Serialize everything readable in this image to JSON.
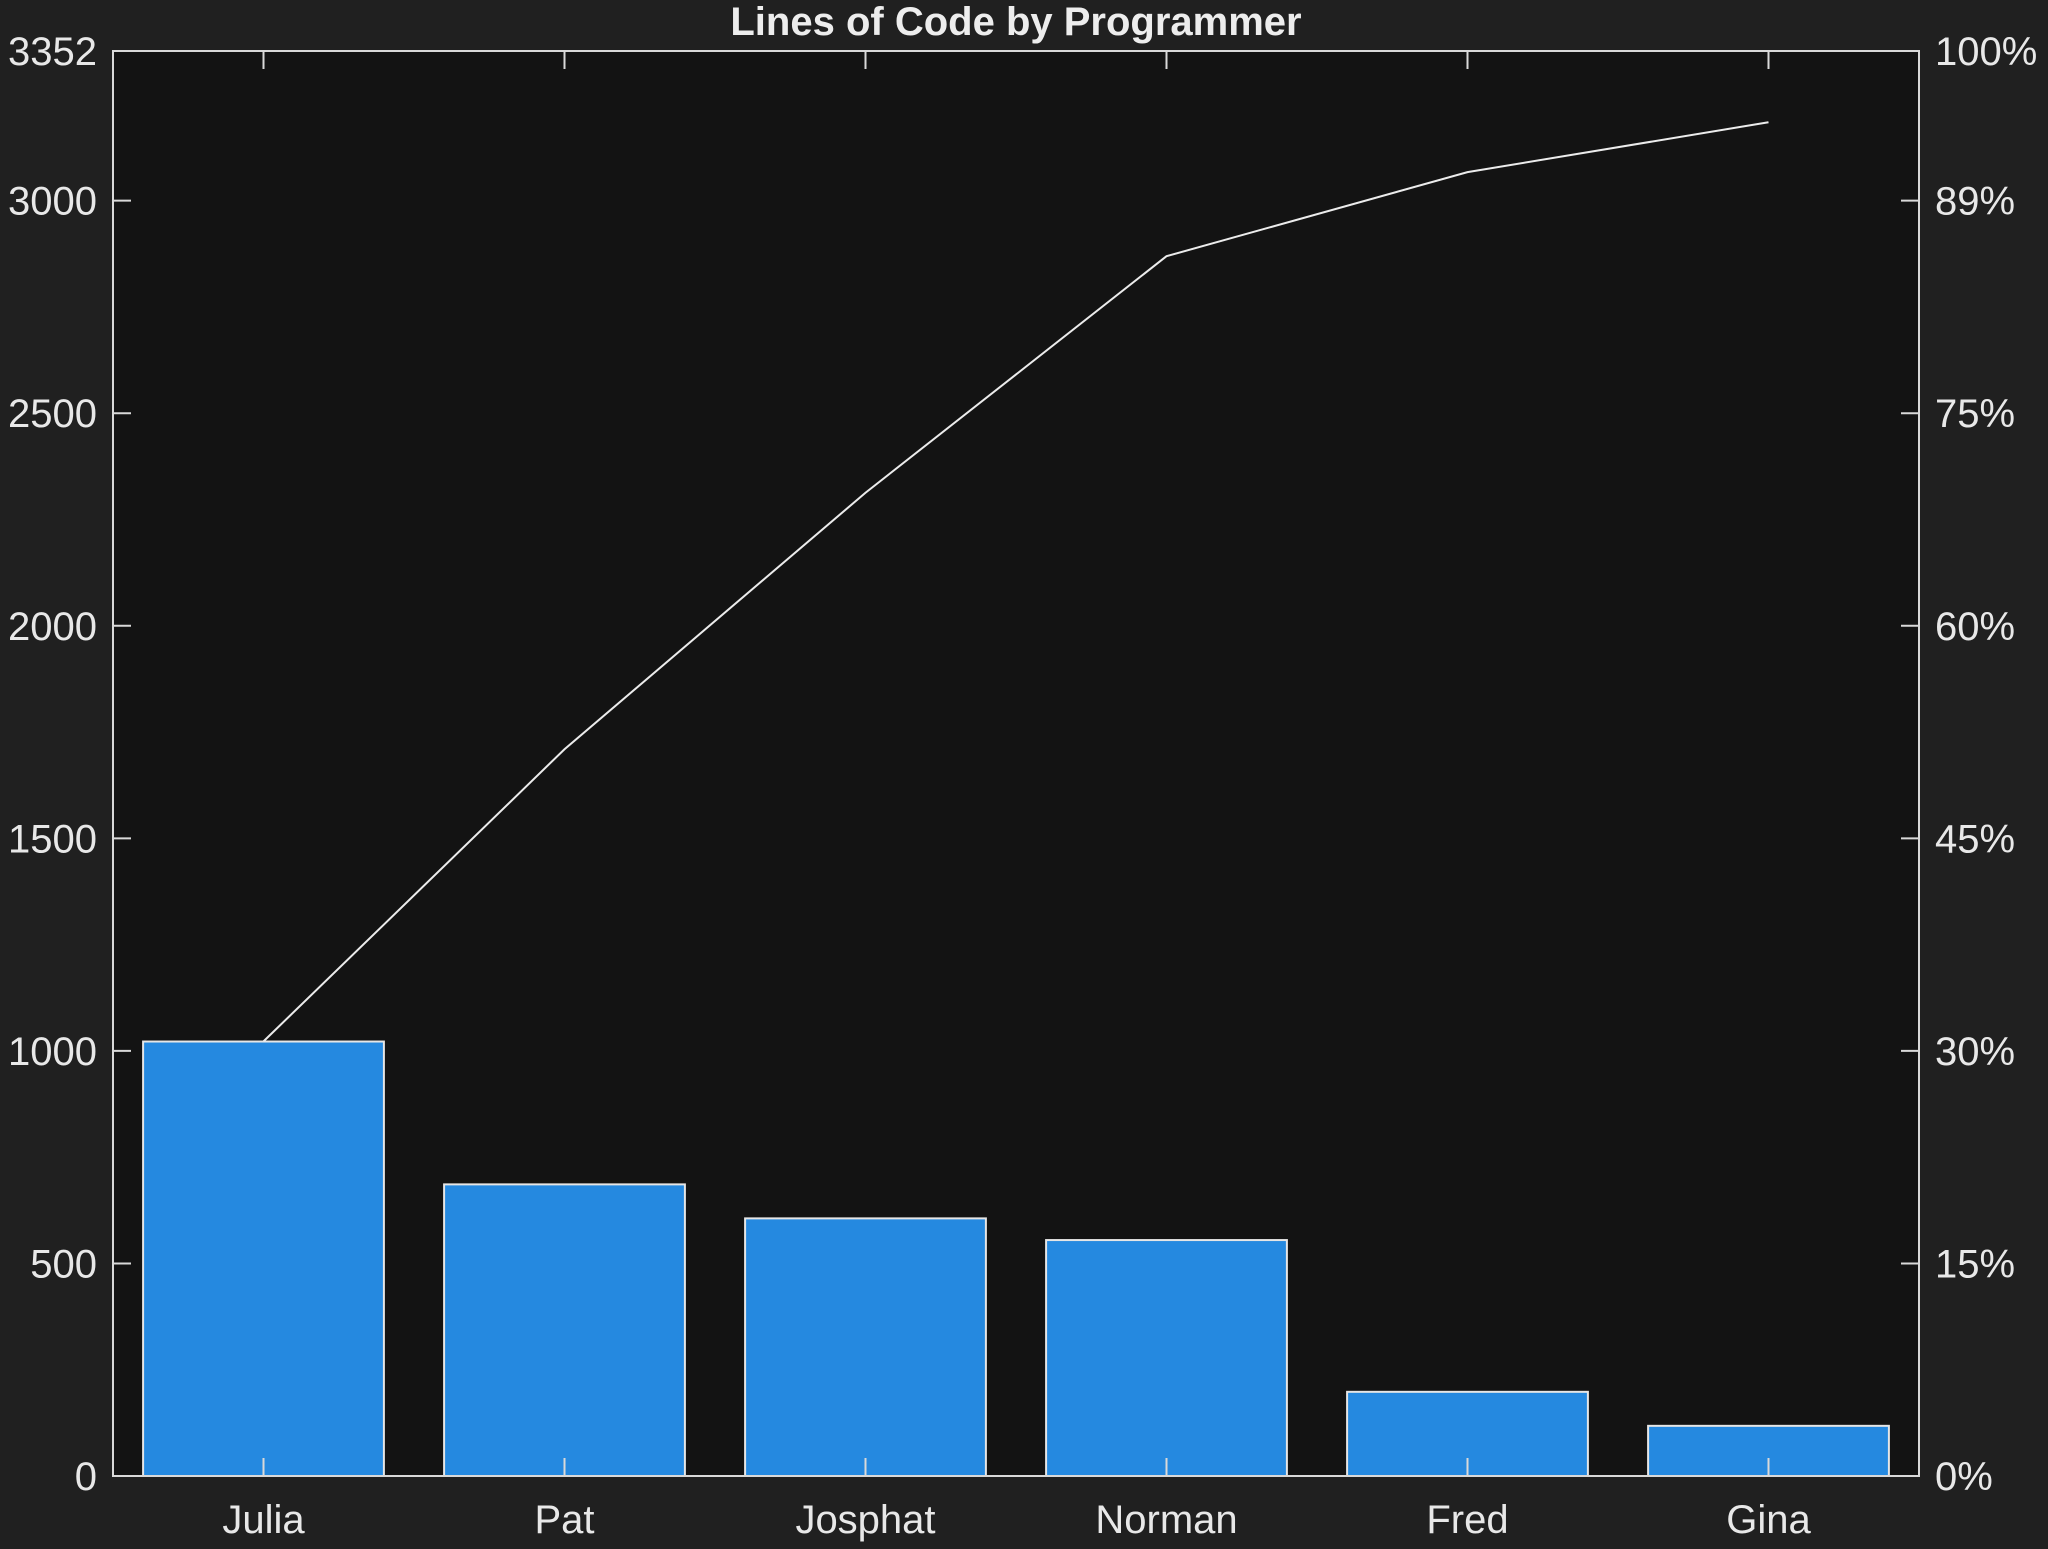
{
  "chart_data": {
    "type": "bar",
    "title": "Lines of Code by Programmer",
    "categories": [
      "Julia",
      "Pat",
      "Josphat",
      "Norman",
      "Fred",
      "Gina"
    ],
    "values": [
      1022,
      686,
      606,
      555,
      198,
      118
    ],
    "cumulative_percent": [
      30.5,
      51.0,
      69.0,
      85.6,
      91.5,
      95.0
    ],
    "ylim": [
      0,
      3352
    ],
    "y_ticks": [
      "0",
      "500",
      "1000",
      "1500",
      "2000",
      "2500",
      "3000",
      "3352"
    ],
    "y_tick_values": [
      0,
      500,
      1000,
      1500,
      2000,
      2500,
      3000,
      3352
    ],
    "y2_ticks": [
      "0%",
      "15%",
      "30%",
      "45%",
      "60%",
      "75%",
      "89%",
      "100%"
    ],
    "y2lim": [
      0,
      100
    ],
    "grid": false,
    "colors": {
      "bar": "#2589e0",
      "bar_edge": "#e6e6e6",
      "line": "#ececec",
      "plot_bg": "#131313",
      "figure_bg": "#202020",
      "axis": "#d9d9d9"
    }
  }
}
